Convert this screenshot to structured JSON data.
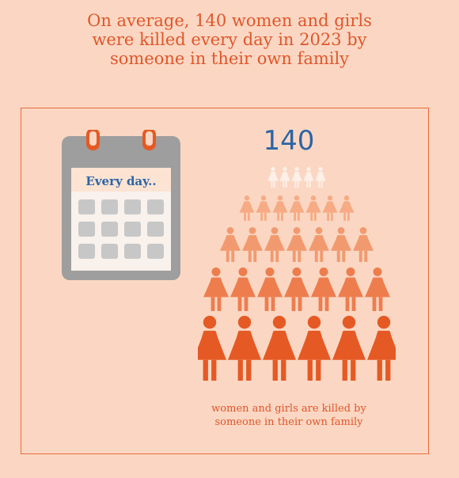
{
  "headline": {
    "lines": [
      "On average, 140 women and girls",
      "were killed every day in 2023 by",
      "someone in their own family"
    ]
  },
  "calendar": {
    "label": "Every day..",
    "icon": "calendar-icon"
  },
  "stat": {
    "number": "140"
  },
  "pictogram": {
    "icon": "woman-figure-icon",
    "rows": [
      {
        "count": 5,
        "color": "#fdf0e8"
      },
      {
        "count": 7,
        "color": "#f6ab84"
      },
      {
        "count": 7,
        "color": "#f29a6f"
      },
      {
        "count": 7,
        "color": "#ee7d4e"
      },
      {
        "count": 6,
        "color": "#e55a24"
      }
    ]
  },
  "caption": {
    "lines": [
      "women and girls are killed by",
      "someone in their own family"
    ]
  }
}
